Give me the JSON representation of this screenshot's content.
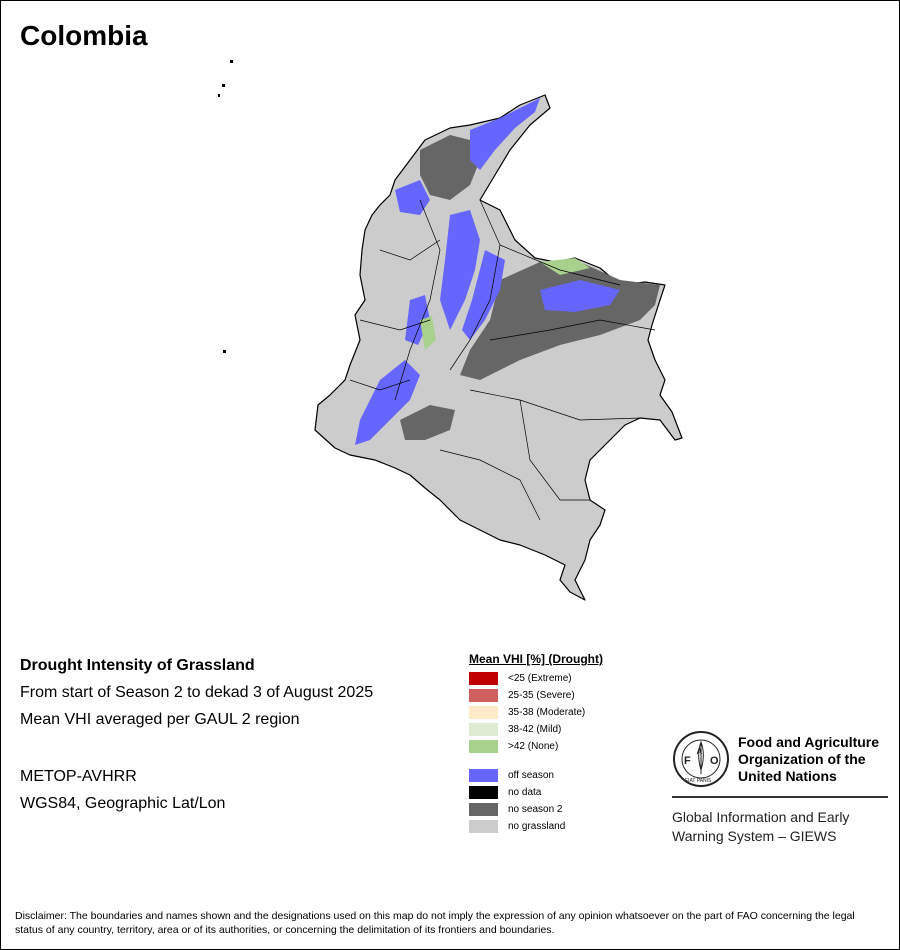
{
  "title": "Colombia",
  "info": {
    "heading": "Drought Intensity of Grassland",
    "period": "From start of Season 2 to dekad 3 of August 2025",
    "method": "Mean VHI averaged per GAUL 2 region",
    "sensor": "METOP-AVHRR",
    "projection": "WGS84, Geographic Lat/Lon"
  },
  "legend": {
    "title": "Mean VHI [%] (Drought)",
    "classes": [
      {
        "label": "<25    (Extreme)",
        "color": "#c00000"
      },
      {
        "label": "25-35 (Severe)",
        "color": "#d06060"
      },
      {
        "label": "35-38 (Moderate)",
        "color": "#ffebc8"
      },
      {
        "label": "38-42 (Mild)",
        "color": "#dcebd2"
      },
      {
        "label": ">42    (None)",
        "color": "#a9d18e"
      }
    ],
    "other": [
      {
        "label": "off season",
        "color": "#6666ff"
      },
      {
        "label": "no data",
        "color": "#000000"
      },
      {
        "label": "no season 2",
        "color": "#666666"
      },
      {
        "label": "no grassland",
        "color": "#cccccc"
      }
    ]
  },
  "org": {
    "line1": "Food and Agriculture",
    "line2": "Organization of the",
    "line3": "United Nations",
    "logo_text": "FAO",
    "logo_ring_text": "FIAT PANIS",
    "giews1": "Global Information and Early",
    "giews2": "Warning System – GIEWS"
  },
  "disclaimer": "Disclaimer: The boundaries and names shown and the designations used on this map do not imply the expression of any opinion whatsoever on the part of FAO concerning the legal status of any country, territory, area or of its authorities, or concerning the delimitation of its frontiers and boundaries."
}
